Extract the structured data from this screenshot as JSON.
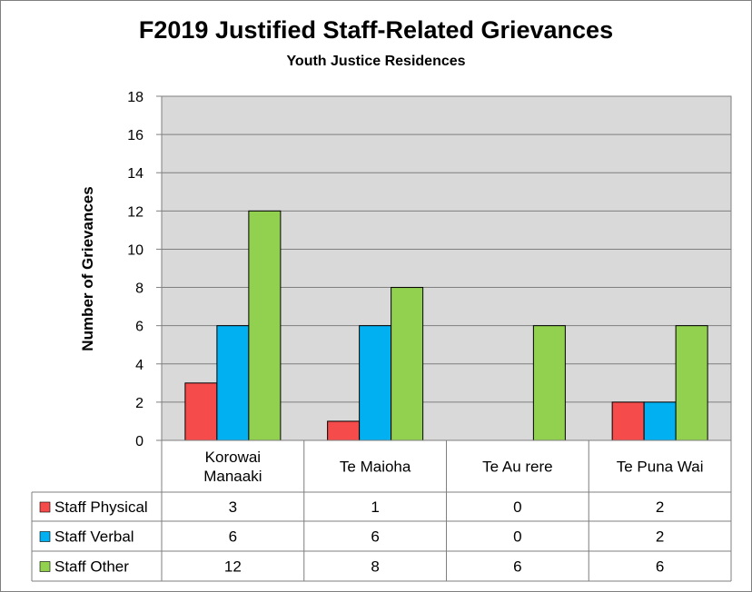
{
  "chart_data": {
    "type": "bar",
    "title": "F2019 Justified Staff-Related Grievances",
    "subtitle": "Youth Justice Residences",
    "ylabel": "Number of Grievances",
    "xlabel": "",
    "categories": [
      [
        "Korowai",
        "Manaaki"
      ],
      [
        "Te Maioha"
      ],
      [
        "Te Au rere"
      ],
      [
        "Te Puna Wai"
      ]
    ],
    "series": [
      {
        "name": "Staff Physical",
        "color": "#f54b4b",
        "values": [
          3,
          1,
          0,
          2
        ]
      },
      {
        "name": "Staff Verbal",
        "color": "#00b0f0",
        "values": [
          6,
          6,
          0,
          2
        ]
      },
      {
        "name": "Staff Other",
        "color": "#92d050",
        "values": [
          12,
          8,
          6,
          6
        ]
      }
    ],
    "ylim": [
      0,
      18
    ],
    "yticks": [
      0,
      2,
      4,
      6,
      8,
      10,
      12,
      14,
      16,
      18
    ],
    "grid": true,
    "plot_background": "#d9d9d9",
    "legend": "data table below chart"
  }
}
